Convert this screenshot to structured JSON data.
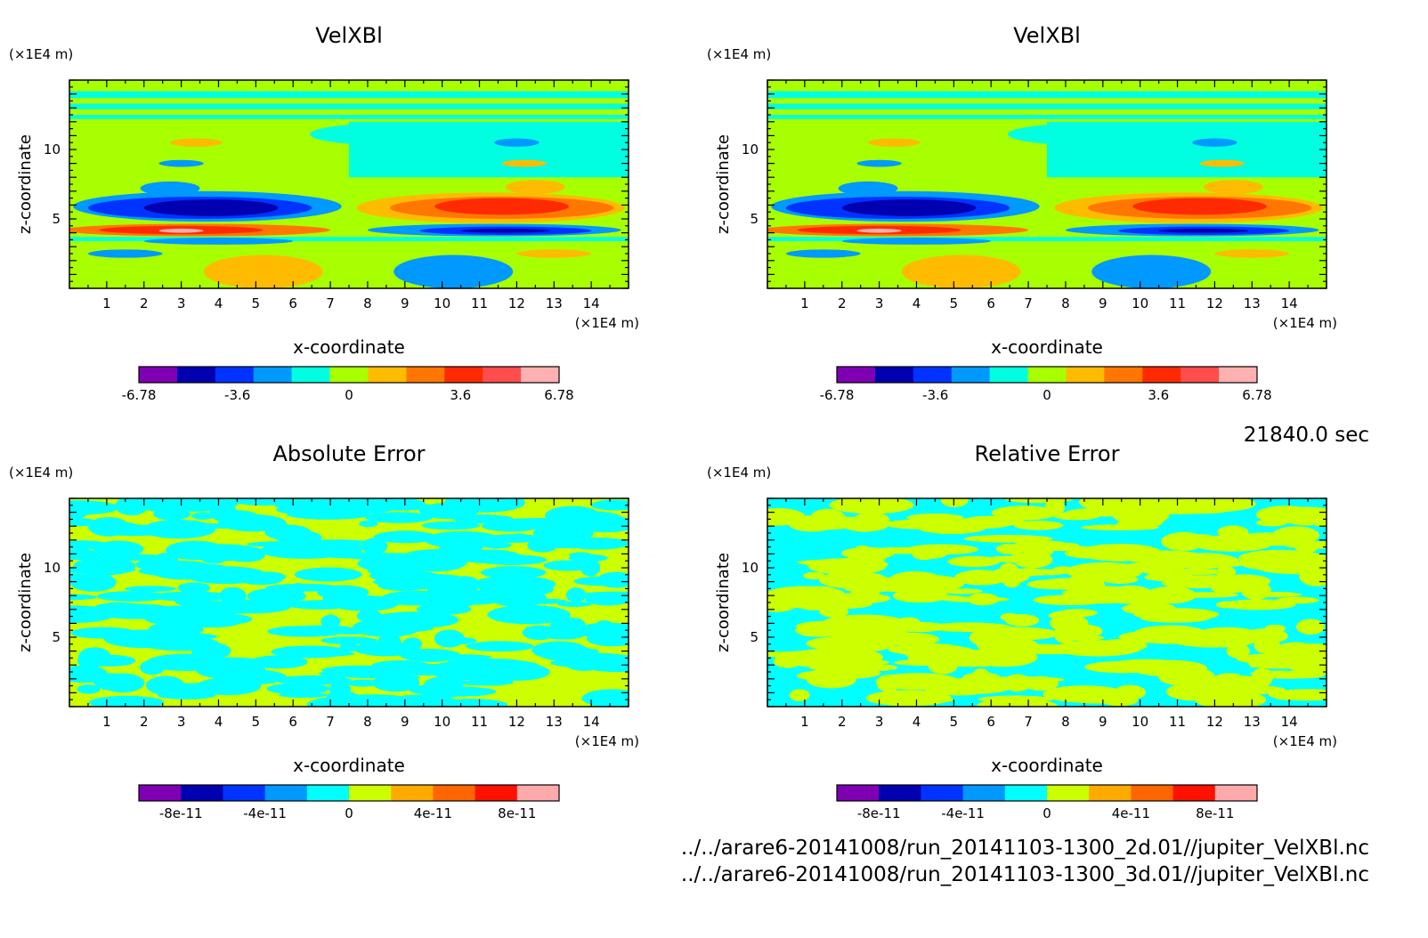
{
  "time_label": "21840.0 sec",
  "footer_lines": [
    "../../arare6-20141008/run_20141103-1300_2d.01//jupiter_VelXBl.nc",
    "../../arare6-20141008/run_20141103-1300_3d.01//jupiter_VelXBl.nc"
  ],
  "colors": {
    "velocity_scale": [
      "#7f00b3",
      "#0000b0",
      "#0033ff",
      "#0099ff",
      "#00ffe0",
      "#a8ff00",
      "#ffbb00",
      "#ff7700",
      "#ff2a00",
      "#ff4d4d",
      "#ffb0b0"
    ],
    "error_scale": [
      "#7f00b3",
      "#0000b0",
      "#0033ff",
      "#0099ff",
      "#00ffff",
      "#ccff00",
      "#ffaa00",
      "#ff6600",
      "#ff1100",
      "#ffaaaa"
    ]
  },
  "chart_data": [
    {
      "type": "heatmap",
      "title": "VelXBl",
      "xlabel": "x-coordinate",
      "ylabel": "z-coordinate",
      "x_unit": "(×1E4 m)",
      "y_unit": "(×1E4 m)",
      "xlim": [
        0,
        15
      ],
      "ylim": [
        0,
        15
      ],
      "x_ticks": [
        1,
        2,
        3,
        4,
        5,
        6,
        7,
        8,
        9,
        10,
        11,
        12,
        13,
        14
      ],
      "y_ticks": [
        5,
        10
      ],
      "colorbar_ticks": [
        "-6.78",
        "-3.6",
        "0",
        "3.6",
        "6.78"
      ],
      "colorbar_range": [
        -6.78,
        6.78
      ]
    },
    {
      "type": "heatmap",
      "title": "VelXBl",
      "xlabel": "x-coordinate",
      "ylabel": "z-coordinate",
      "x_unit": "(×1E4 m)",
      "y_unit": "(×1E4 m)",
      "xlim": [
        0,
        15
      ],
      "ylim": [
        0,
        15
      ],
      "x_ticks": [
        1,
        2,
        3,
        4,
        5,
        6,
        7,
        8,
        9,
        10,
        11,
        12,
        13,
        14
      ],
      "y_ticks": [
        5,
        10
      ],
      "colorbar_ticks": [
        "-6.78",
        "-3.6",
        "0",
        "3.6",
        "6.78"
      ],
      "colorbar_range": [
        -6.78,
        6.78
      ]
    },
    {
      "type": "heatmap",
      "title": "Absolute Error",
      "xlabel": "x-coordinate",
      "ylabel": "z-coordinate",
      "x_unit": "(×1E4 m)",
      "y_unit": "(×1E4 m)",
      "xlim": [
        0,
        15
      ],
      "ylim": [
        0,
        15
      ],
      "x_ticks": [
        1,
        2,
        3,
        4,
        5,
        6,
        7,
        8,
        9,
        10,
        11,
        12,
        13,
        14
      ],
      "y_ticks": [
        5,
        10
      ],
      "colorbar_ticks": [
        "-8e-11",
        "-4e-11",
        "0",
        "4e-11",
        "8e-11"
      ],
      "colorbar_range": [
        -1e-10,
        1e-10
      ]
    },
    {
      "type": "heatmap",
      "title": "Relative Error",
      "xlabel": "x-coordinate",
      "ylabel": "z-coordinate",
      "x_unit": "(×1E4 m)",
      "y_unit": "(×1E4 m)",
      "xlim": [
        0,
        15
      ],
      "ylim": [
        0,
        15
      ],
      "x_ticks": [
        1,
        2,
        3,
        4,
        5,
        6,
        7,
        8,
        9,
        10,
        11,
        12,
        13,
        14
      ],
      "y_ticks": [
        5,
        10
      ],
      "colorbar_ticks": [
        "-8e-11",
        "-4e-11",
        "0",
        "4e-11",
        "8e-11"
      ],
      "colorbar_range": [
        -1e-10,
        1e-10
      ]
    }
  ]
}
